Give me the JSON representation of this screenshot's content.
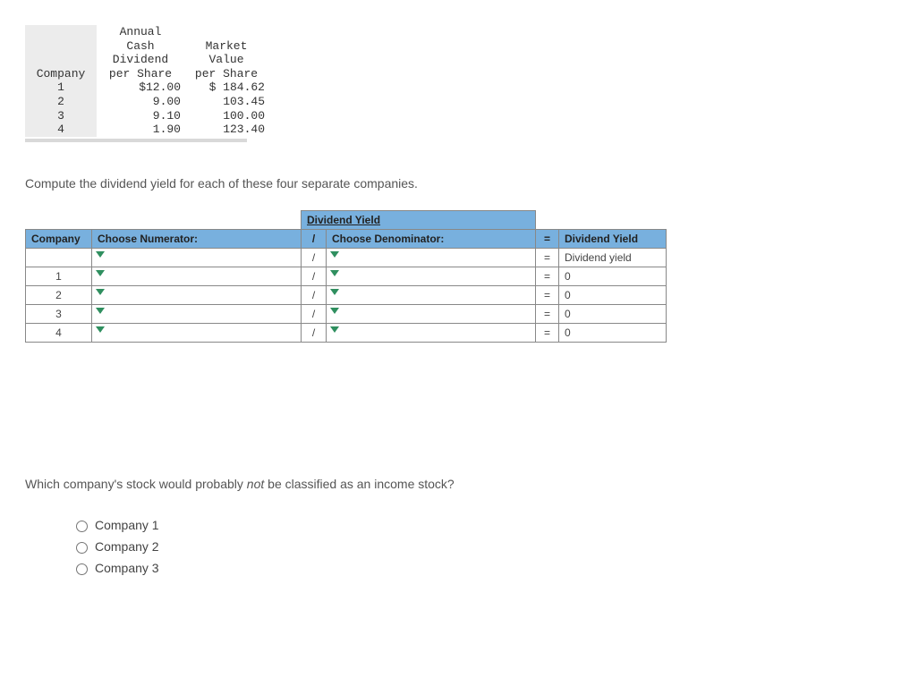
{
  "data_table": {
    "headers": {
      "company": "Company",
      "dividend_lines": [
        "Annual",
        "Cash",
        "Dividend",
        "per Share"
      ],
      "market_lines": [
        "",
        "Market",
        "Value",
        "per Share"
      ]
    },
    "rows": [
      {
        "company": "1",
        "dividend": "$12.00",
        "market": "$ 184.62"
      },
      {
        "company": "2",
        "dividend": "9.00",
        "market": "103.45"
      },
      {
        "company": "3",
        "dividend": "9.10",
        "market": "100.00"
      },
      {
        "company": "4",
        "dividend": "1.90",
        "market": "123.40"
      }
    ]
  },
  "question1": "Compute the dividend yield for each of these four separate companies.",
  "calc_table": {
    "title": "Dividend Yield",
    "headers": {
      "company": "Company",
      "numerator": "Choose Numerator:",
      "slash": "/",
      "denominator": "Choose Denominator:",
      "eq": "=",
      "yield": "Dividend Yield"
    },
    "formula_row": {
      "slash": "/",
      "eq": "=",
      "yield_label": "Dividend yield"
    },
    "rows": [
      {
        "company": "1",
        "slash": "/",
        "eq": "=",
        "result": "0"
      },
      {
        "company": "2",
        "slash": "/",
        "eq": "=",
        "result": "0"
      },
      {
        "company": "3",
        "slash": "/",
        "eq": "=",
        "result": "0"
      },
      {
        "company": "4",
        "slash": "/",
        "eq": "=",
        "result": "0"
      }
    ]
  },
  "question2_prefix": "Which company's stock would probably ",
  "question2_em": "not",
  "question2_suffix": " be classified as an income stock?",
  "options": [
    "Company 1",
    "Company 2",
    "Company 3"
  ]
}
